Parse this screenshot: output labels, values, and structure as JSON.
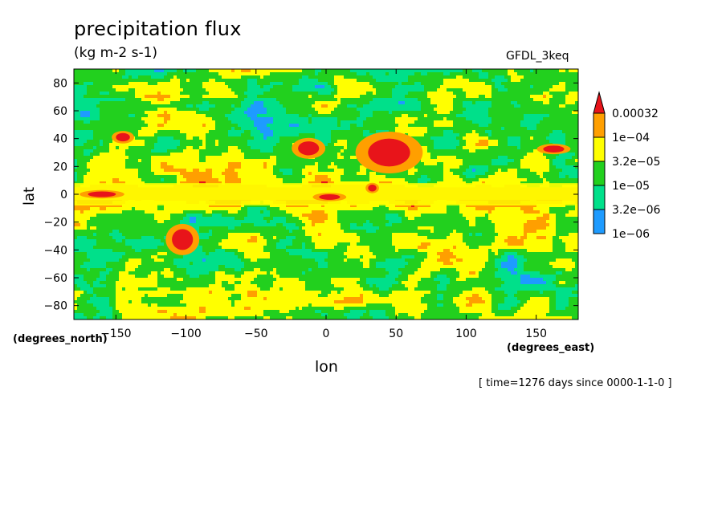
{
  "header": {
    "title": "precipitation flux",
    "units": "(kg m-2 s-1)",
    "source": "GFDL_3keq",
    "time_note": "[ time=1276 days since 0000-1-1-0 ]"
  },
  "chart_data": {
    "type": "heatmap",
    "title": "precipitation flux",
    "xlabel": "lon",
    "ylabel": "lat",
    "x_units": "(degrees_east)",
    "y_units": "(degrees_north)",
    "xlim": [
      -180,
      180
    ],
    "ylim": [
      -90,
      90
    ],
    "xticks": [
      -150,
      -100,
      -50,
      0,
      50,
      100,
      150
    ],
    "yticks": [
      -80,
      -60,
      -40,
      -20,
      0,
      20,
      40,
      60,
      80
    ],
    "colorbar": {
      "levels": [
        "1e-06",
        "3.2e-06",
        "1e-05",
        "3.2e-05",
        "1e-04",
        "0.00032"
      ],
      "colors": [
        "#ffffff",
        "#1e9bff",
        "#00e08a",
        "#22d01e",
        "#ffff00",
        "#ff9f00",
        "#e8141a"
      ]
    },
    "regions": [
      {
        "name": "equatorial-band-core",
        "lon": [
          -180,
          180
        ],
        "lat": [
          -4,
          5
        ],
        "level": "1e-04"
      },
      {
        "name": "equatorial-band-edge",
        "lon": [
          -180,
          180
        ],
        "lat": [
          -8,
          8
        ],
        "level": "3.2e-05"
      },
      {
        "name": "max-equator-1",
        "lon": [
          -170,
          -150
        ],
        "lat": [
          -2,
          2
        ],
        "level": "0.00032"
      },
      {
        "name": "max-equator-2",
        "lon": [
          -5,
          10
        ],
        "lat": [
          -4,
          0
        ],
        "level": "0.00032"
      },
      {
        "name": "max-equator-3",
        "lon": [
          30,
          36
        ],
        "lat": [
          2,
          7
        ],
        "level": "0.00032"
      },
      {
        "name": "storm-ne-1",
        "lon": [
          30,
          60
        ],
        "lat": [
          20,
          40
        ],
        "level": "0.00032"
      },
      {
        "name": "storm-ne-2",
        "lon": [
          -20,
          -5
        ],
        "lat": [
          28,
          38
        ],
        "level": "0.00032"
      },
      {
        "name": "storm-sw",
        "lon": [
          -110,
          -95
        ],
        "lat": [
          -40,
          -25
        ],
        "level": "0.00032"
      },
      {
        "name": "storm-nw",
        "lon": [
          -150,
          -140
        ],
        "lat": [
          38,
          44
        ],
        "level": "0.00032"
      },
      {
        "name": "storm-ne-3",
        "lon": [
          155,
          170
        ],
        "lat": [
          30,
          35
        ],
        "level": "0.00032"
      }
    ]
  }
}
